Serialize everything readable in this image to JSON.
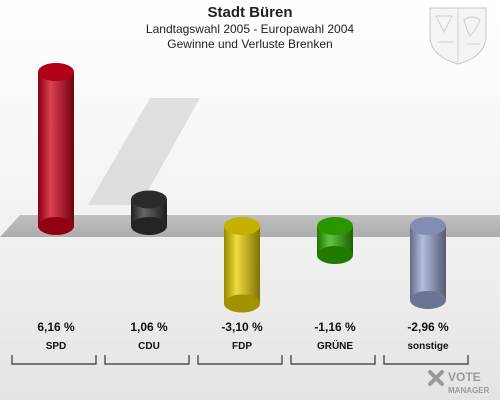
{
  "header": {
    "title": "Stadt Büren",
    "subtitle": "Landtagswahl 2005 - Europawahl 2004",
    "subtitle2": "Gewinne und Verluste Brenken"
  },
  "watermark": {
    "line1": "VOTE",
    "line2": "MANAGER"
  },
  "chart_data": {
    "type": "bar",
    "categories": [
      "SPD",
      "CDU",
      "FDP",
      "GRÜNE",
      "sonstige"
    ],
    "values": [
      6.16,
      1.06,
      -3.1,
      -1.16,
      -2.96
    ],
    "value_labels": [
      "6,16 %",
      "1,06 %",
      "-3,10 %",
      "-1,16 %",
      "-2,96 %"
    ],
    "colors": [
      "#d0001a",
      "#333333",
      "#e8d000",
      "#30b000",
      "#99a6d0"
    ],
    "title": "Stadt Büren",
    "xlabel": "",
    "ylabel": "",
    "ylim": [
      -4,
      7
    ]
  }
}
